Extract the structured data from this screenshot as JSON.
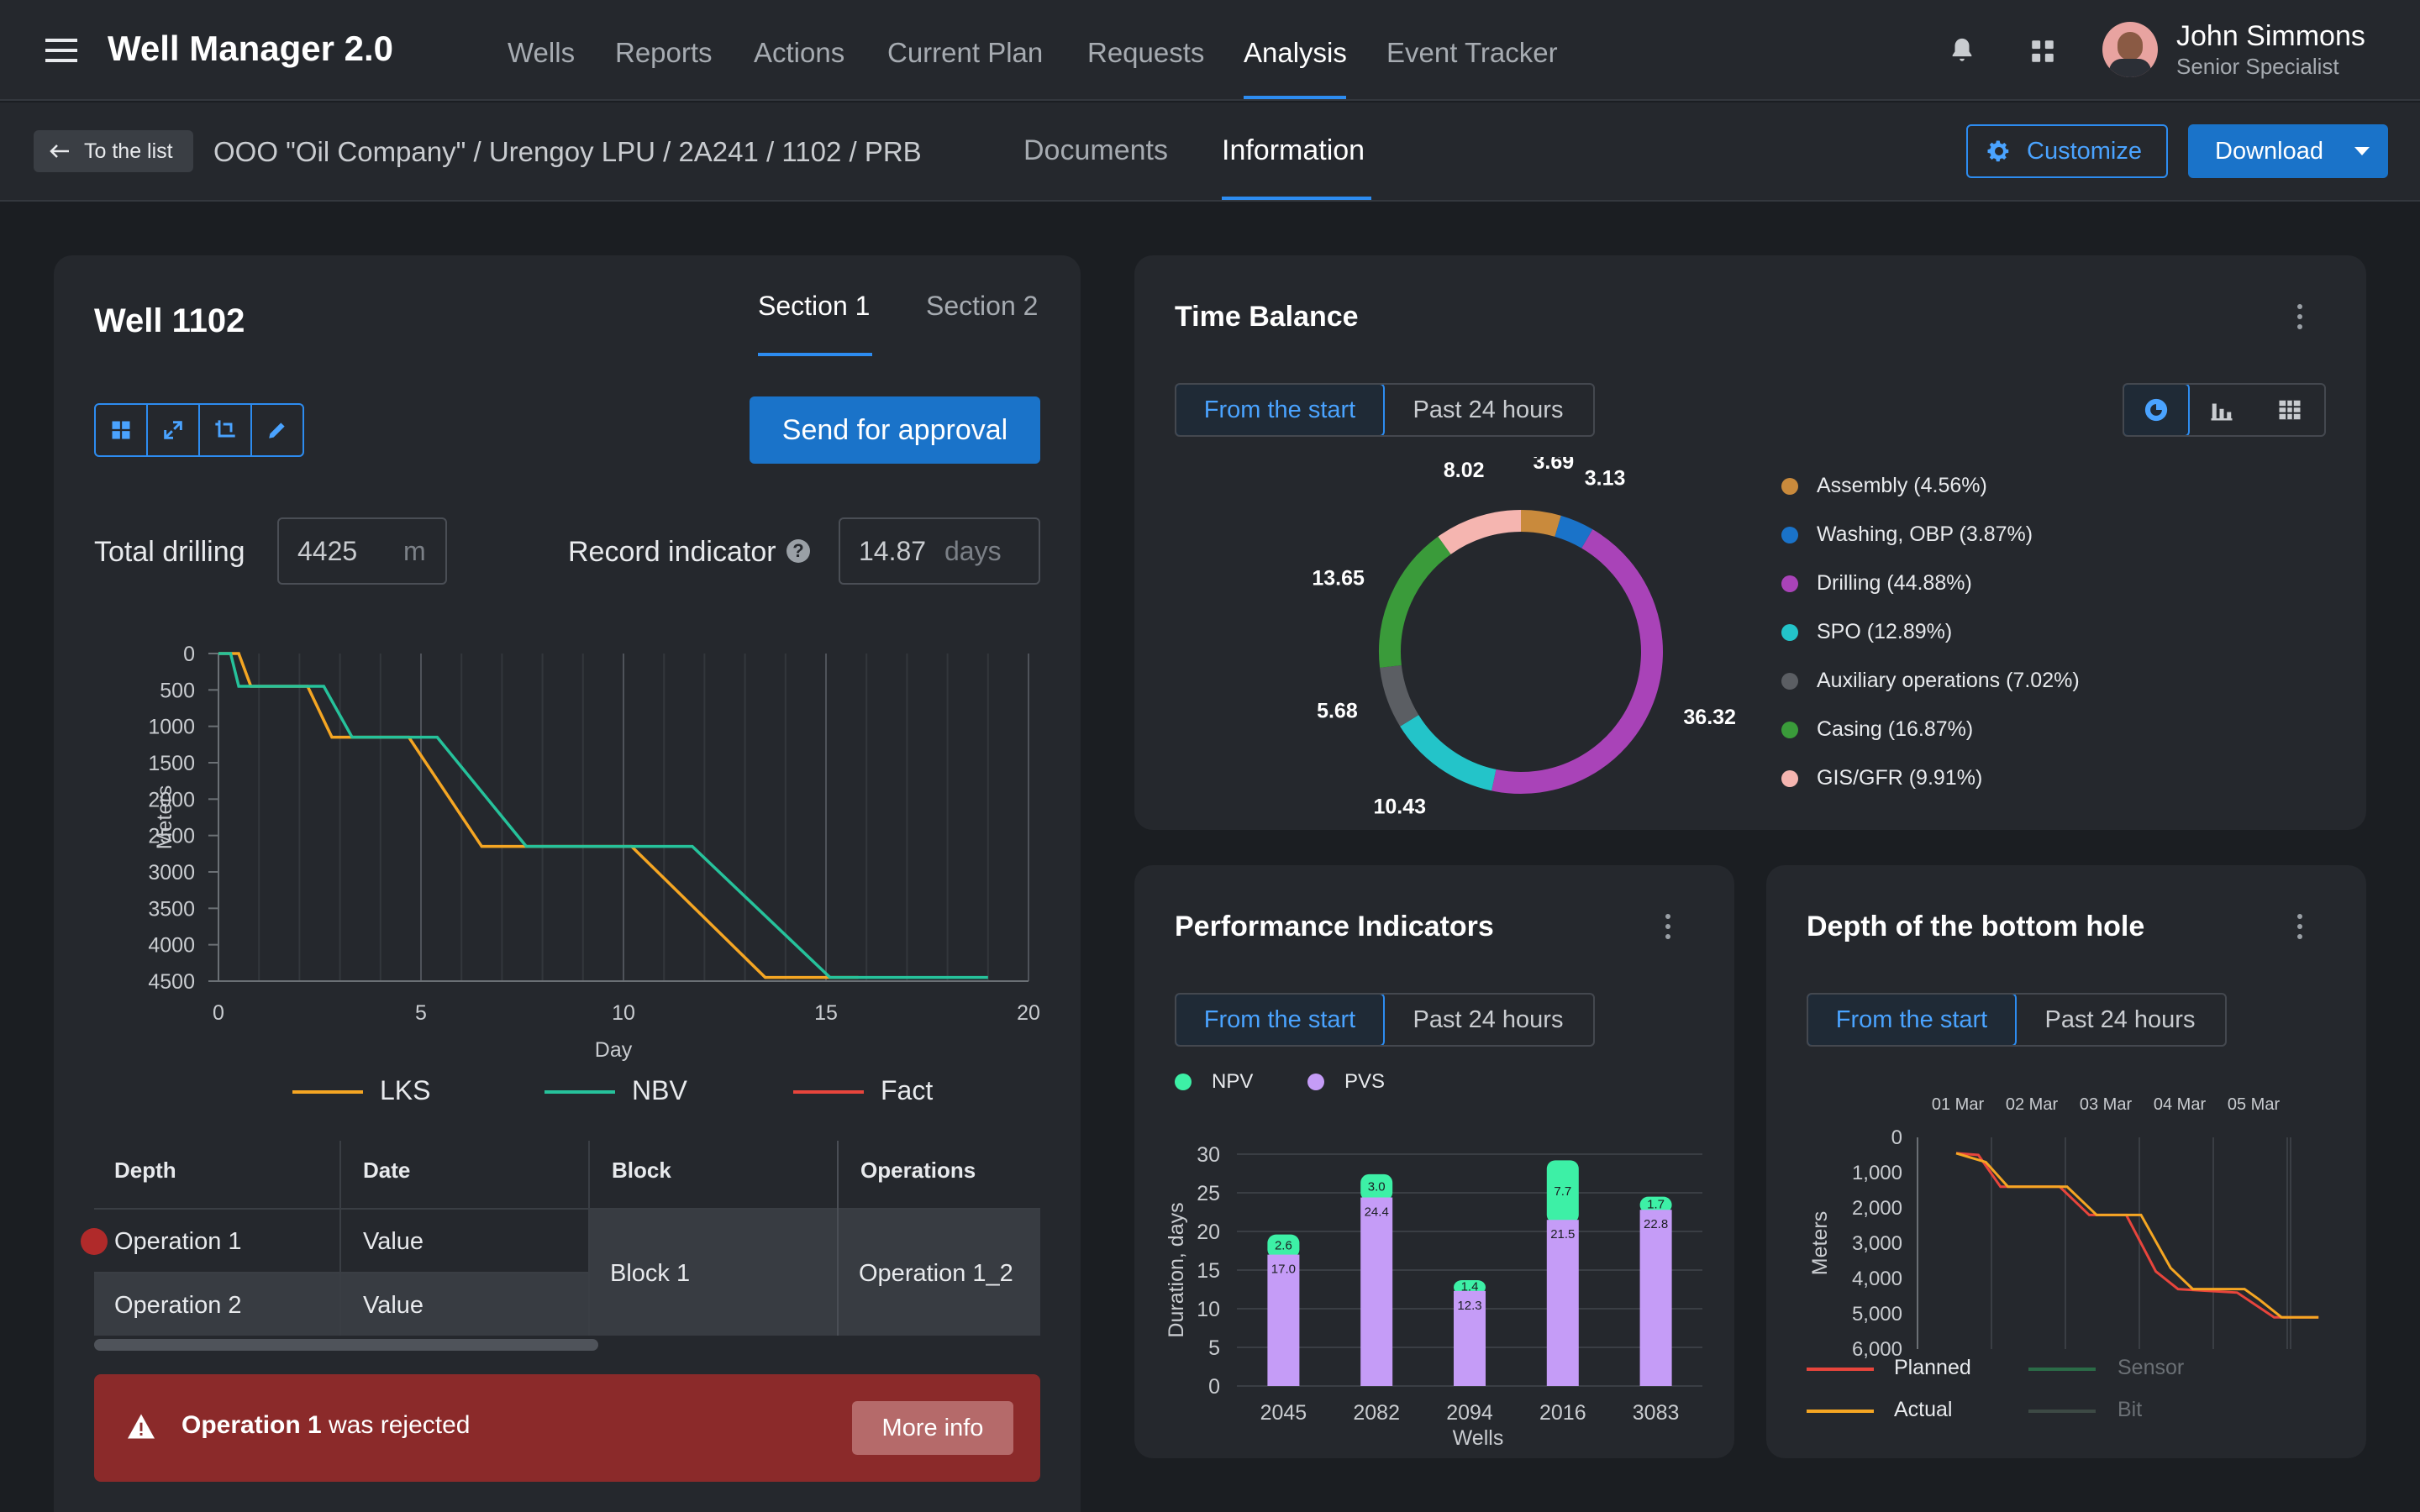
{
  "app": {
    "title": "Well Manager 2.0"
  },
  "nav": [
    "Wells",
    "Reports",
    "Actions",
    "Current Plan",
    "Requests",
    "Analysis",
    "Event Tracker"
  ],
  "nav_active": "Analysis",
  "user": {
    "name": "John Simmons",
    "role": "Senior Specialist"
  },
  "subbar": {
    "back_label": "To the list",
    "breadcrumb": "OOO \"Oil Company\" / Urengoy LPU / 2A241 / 1102 / PRB",
    "tabs": [
      "Documents",
      "Information"
    ],
    "active_tab": "Information",
    "customize_label": "Customize",
    "download_label": "Download"
  },
  "well": {
    "title": "Well 1102",
    "sections": [
      "Section 1",
      "Section 2"
    ],
    "send_label": "Send for approval",
    "total_drilling_label": "Total drilling",
    "total_drilling_value": "4425",
    "total_drilling_unit": "m",
    "record_label": "Record indicator",
    "record_value": "14.87",
    "record_unit": "days",
    "table": {
      "headers": [
        "Depth",
        "Date",
        "Block",
        "Operations"
      ],
      "rows": [
        {
          "depth": "Operation 1",
          "date": "Value"
        },
        {
          "depth": "Operation 2",
          "date": "Value"
        }
      ],
      "block": "Block 1",
      "operation": "Operation 1_2"
    },
    "alert": {
      "strong": "Operation 1",
      "text": "was rejected",
      "button": "More info"
    }
  },
  "time_balance": {
    "title": "Time Balance",
    "seg": [
      "From the start",
      "Past 24 hours"
    ],
    "legend": [
      "Assembly (4.56%)",
      "Washing, OBP (3.87%)",
      "Drilling (44.88%)",
      "SPO (12.89%)",
      "Auxiliary operations (7.02%)",
      "Casing (16.87%)",
      "GIS/GFR (9.91%)"
    ]
  },
  "performance": {
    "title": "Performance Indicators",
    "seg": [
      "From the start",
      "Past 24 hours"
    ]
  },
  "depth_hole": {
    "title": "Depth of the bottom hole",
    "seg": [
      "From the start",
      "Past 24 hours"
    ],
    "legend": [
      "Planned",
      "Sensor",
      "Actual",
      "Bit"
    ]
  },
  "colors": {
    "accent": "#1a73c9",
    "lks": "#f5a623",
    "nbv": "#26c29b",
    "fact": "#e8453c",
    "npv": "#3df0a6",
    "pvs": "#c59cf7",
    "alert": "#8b2a2a"
  },
  "chart_data": [
    {
      "type": "line",
      "name": "well-depth",
      "xlabel": "Day",
      "ylabel": "Meters",
      "xlim": [
        0,
        20
      ],
      "ylim": [
        0,
        4500
      ],
      "y_inverted": true,
      "x_ticks": [
        0,
        5,
        10,
        15,
        20
      ],
      "y_ticks": [
        0,
        500,
        1000,
        1500,
        2000,
        2500,
        3000,
        3500,
        4000,
        4500
      ],
      "series": [
        {
          "name": "LKS",
          "color": "#f5a623",
          "points": [
            [
              0,
              0
            ],
            [
              0.5,
              0
            ],
            [
              0.8,
              450
            ],
            [
              2.2,
              450
            ],
            [
              2.8,
              1150
            ],
            [
              4.7,
              1150
            ],
            [
              6.5,
              2650
            ],
            [
              10.2,
              2650
            ],
            [
              13.5,
              4450
            ],
            [
              15.8,
              4450
            ]
          ]
        },
        {
          "name": "NBV",
          "color": "#26c29b",
          "points": [
            [
              0,
              0
            ],
            [
              0.3,
              0
            ],
            [
              0.5,
              450
            ],
            [
              2.6,
              450
            ],
            [
              3.3,
              1150
            ],
            [
              5.4,
              1150
            ],
            [
              7.6,
              2650
            ],
            [
              11.7,
              2650
            ],
            [
              15.1,
              4450
            ],
            [
              19,
              4450
            ]
          ]
        },
        {
          "name": "Fact",
          "color": "#e8453c",
          "points": []
        }
      ]
    },
    {
      "type": "pie",
      "name": "time-balance",
      "title": "Time Balance",
      "slices": [
        {
          "label": "Assembly",
          "value": 3.69,
          "color": "#c98a3c"
        },
        {
          "label": "Washing, OBP",
          "value": 3.13,
          "color": "#1a73c9"
        },
        {
          "label": "Drilling",
          "value": 36.32,
          "color": "#a943b8"
        },
        {
          "label": "SPO",
          "value": 10.43,
          "color": "#23c4c9"
        },
        {
          "label": "Auxiliary operations",
          "value": 5.68,
          "color": "#5b5e63"
        },
        {
          "label": "Casing",
          "value": 13.65,
          "color": "#3a9b3a"
        },
        {
          "label": "GIS/GFR",
          "value": 8.02,
          "color": "#f5b5b0"
        }
      ]
    },
    {
      "type": "bar",
      "name": "performance-indicators",
      "xlabel": "Wells",
      "ylabel": "Duration, days",
      "ylim": [
        0,
        30
      ],
      "y_ticks": [
        0,
        5,
        10,
        15,
        20,
        25,
        30
      ],
      "categories": [
        "2045",
        "2082",
        "2094",
        "2016",
        "3083"
      ],
      "stacked": true,
      "series": [
        {
          "name": "PVS",
          "color": "#c59cf7",
          "values": [
            17.0,
            24.4,
            12.3,
            21.5,
            22.8
          ]
        },
        {
          "name": "NPV",
          "color": "#3df0a6",
          "values": [
            2.6,
            3.0,
            1.4,
            7.7,
            1.7
          ]
        }
      ]
    },
    {
      "type": "line",
      "name": "bottom-hole-depth",
      "ylabel": "Meters",
      "x_ticks": [
        "01 Mar",
        "02 Mar",
        "03 Mar",
        "04 Mar",
        "05 Mar"
      ],
      "y_ticks": [
        "0",
        "1,000",
        "2,000",
        "3,000",
        "4,000",
        "5,000",
        "6,000"
      ],
      "ylim": [
        0,
        6000
      ],
      "y_inverted": true,
      "series": [
        {
          "name": "Planned",
          "color": "#e8453c",
          "points": [
            [
              0,
              450
            ],
            [
              0.3,
              500
            ],
            [
              0.6,
              1400
            ],
            [
              1.4,
              1400
            ],
            [
              1.8,
              2200
            ],
            [
              2.3,
              2200
            ],
            [
              2.7,
              3800
            ],
            [
              3.0,
              4300
            ],
            [
              3.8,
              4400
            ],
            [
              4.3,
              5100
            ],
            [
              4.9,
              5100
            ]
          ]
        },
        {
          "name": "Actual",
          "color": "#f5a623",
          "points": [
            [
              0,
              450
            ],
            [
              0.4,
              700
            ],
            [
              0.7,
              1400
            ],
            [
              1.5,
              1400
            ],
            [
              1.9,
              2200
            ],
            [
              2.5,
              2200
            ],
            [
              2.9,
              3700
            ],
            [
              3.2,
              4300
            ],
            [
              3.9,
              4300
            ],
            [
              4.1,
              4600
            ],
            [
              4.4,
              5100
            ],
            [
              4.9,
              5100
            ]
          ]
        },
        {
          "name": "Sensor",
          "color": "#2b6b47",
          "points": []
        },
        {
          "name": "Bit",
          "color": "#3d4a45",
          "points": []
        }
      ]
    }
  ]
}
